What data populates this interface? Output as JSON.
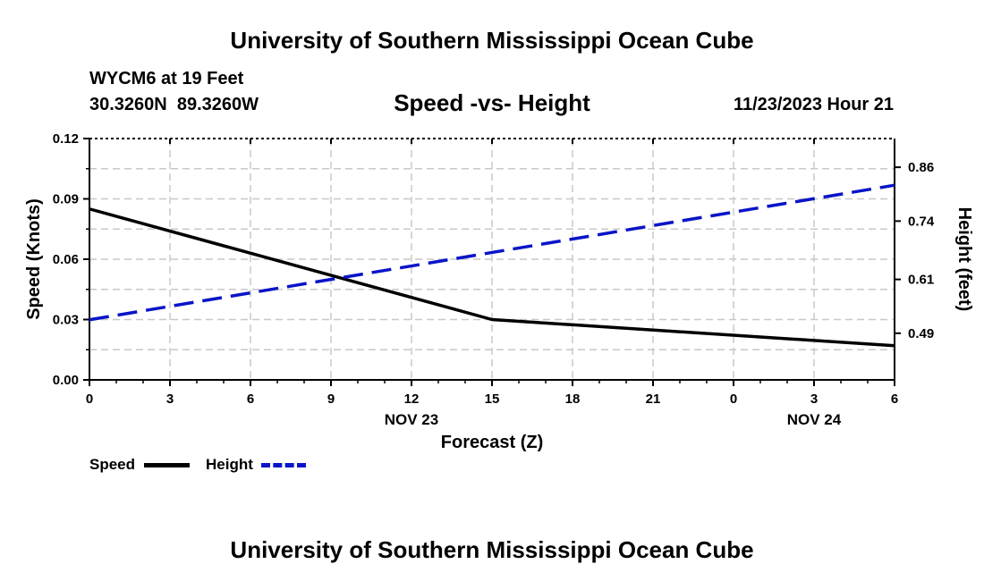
{
  "header": {
    "title_top": "University of Southern Mississippi Ocean Cube",
    "station": "WYCM6 at 19 Feet",
    "coords": "30.3260N  89.3260W",
    "subtitle": "Speed -vs- Height",
    "datetime": "11/23/2023 Hour 21",
    "title_bottom": "University of Southern Mississippi Ocean Cube"
  },
  "legend": {
    "speed_label": "Speed",
    "height_label": "Height"
  },
  "chart_data": {
    "type": "line",
    "title": "Speed -vs- Height",
    "xlabel": "Forecast (Z)",
    "ylabel": "Speed (Knots)",
    "y2label": "Height (feet)",
    "x": [
      0,
      3,
      6,
      9,
      12,
      15,
      18,
      21,
      24,
      27,
      30
    ],
    "x_tick_labels": [
      "0",
      "3",
      "6",
      "9",
      "12",
      "15",
      "18",
      "21",
      "0",
      "3",
      "6"
    ],
    "date_labels": [
      {
        "x": 12,
        "label": "NOV 23"
      },
      {
        "x": 27,
        "label": "NOV 24"
      }
    ],
    "ylim": [
      0,
      0.12
    ],
    "y_ticks": [
      0,
      0.03,
      0.06,
      0.09,
      0.12
    ],
    "y_tick_labels": [
      "0.00",
      "0.03",
      "0.06",
      "0.09",
      "0.12"
    ],
    "y2lim": [
      0.386,
      0.924
    ],
    "y2_ticks": [
      0.49,
      0.61,
      0.74,
      0.86
    ],
    "y2_tick_labels": [
      "0.49",
      "0.61",
      "0.74",
      "0.86"
    ],
    "grid": true,
    "series": [
      {
        "name": "Speed",
        "axis": "left",
        "color": "#000000",
        "style": "solid",
        "x": [
          0,
          15,
          30
        ],
        "values": [
          0.085,
          0.03,
          0.017
        ]
      },
      {
        "name": "Height",
        "axis": "right",
        "color": "#0a14c8",
        "style": "dashed",
        "x": [
          0,
          30
        ],
        "values": [
          0.52,
          0.82
        ]
      }
    ]
  }
}
